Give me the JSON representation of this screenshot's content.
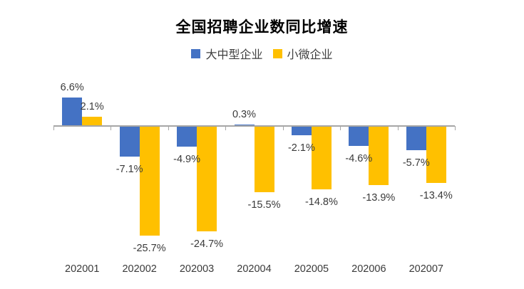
{
  "chart_data": {
    "type": "bar",
    "title": "全国招聘企业数同比增速",
    "categories": [
      "202001",
      "202002",
      "202003",
      "202004",
      "202005",
      "202006",
      "202007"
    ],
    "series": [
      {
        "name": "大中型企业",
        "color": "#4472C4",
        "values": [
          6.6,
          -7.1,
          -4.9,
          0.3,
          -2.1,
          -4.6,
          -5.7
        ],
        "labels": [
          "6.6%",
          "-7.1%",
          "-4.9%",
          "0.3%",
          "-2.1%",
          "-4.6%",
          "-5.7%"
        ]
      },
      {
        "name": "小微企业",
        "color": "#FFC000",
        "values": [
          2.1,
          -25.7,
          -24.7,
          -15.5,
          -14.8,
          -13.9,
          -13.4
        ],
        "labels": [
          "2.1%",
          "-25.7%",
          "-24.7%",
          "-15.5%",
          "-14.8%",
          "-13.9%",
          "-13.4%"
        ]
      }
    ],
    "xlabel": "",
    "ylabel": "",
    "ylim": [
      -27,
      8
    ],
    "grid": false,
    "legend_position": "top",
    "axis_color": "#A6A6A6",
    "label_color": "#3a3a3a",
    "background": "#ffffff"
  }
}
